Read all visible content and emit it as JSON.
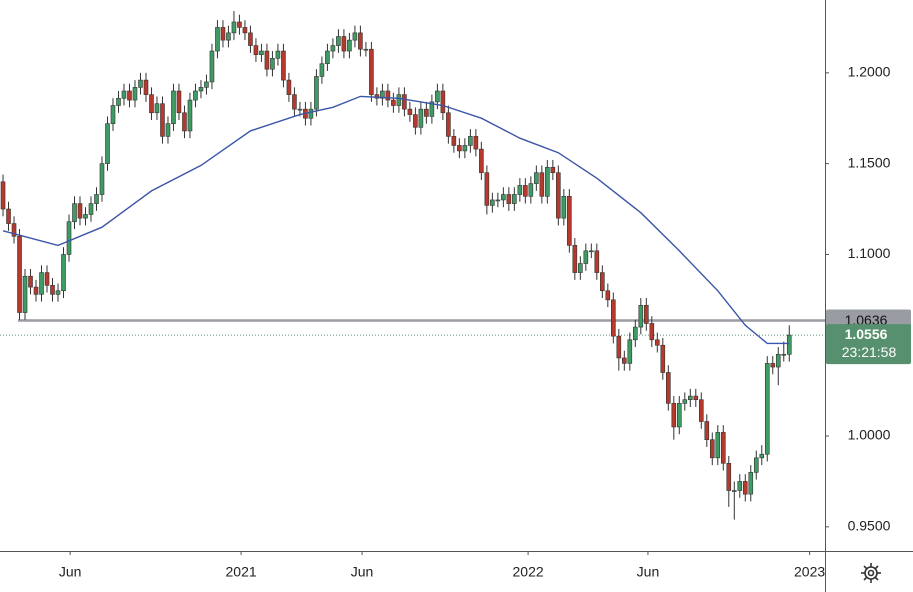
{
  "chart_data": {
    "type": "candlestick",
    "x": [
      0,
      1,
      2,
      3,
      4,
      5,
      6,
      7,
      8,
      9,
      10,
      11,
      12,
      13,
      14,
      15,
      16,
      17,
      18,
      19,
      20,
      21,
      22,
      23,
      24,
      25,
      26,
      27,
      28,
      29,
      30,
      31,
      32,
      33,
      34,
      35,
      36,
      37,
      38,
      39,
      40,
      41,
      42,
      43,
      44,
      45,
      46,
      47,
      48,
      49,
      50,
      51,
      52,
      53,
      54,
      55,
      56,
      57,
      58,
      59,
      60,
      61,
      62,
      63,
      64,
      65,
      66,
      67,
      68,
      69,
      70,
      71,
      72,
      73,
      74,
      75,
      76,
      77,
      78,
      79,
      80,
      81,
      82,
      83,
      84,
      85,
      86,
      87,
      88,
      89,
      90,
      91,
      92,
      93,
      94,
      95,
      96,
      97,
      98,
      99,
      100,
      101,
      102,
      103,
      104,
      105,
      106,
      107,
      108,
      109,
      110,
      111,
      112,
      113,
      114,
      115,
      116,
      117,
      118,
      119,
      120,
      121,
      122,
      123,
      124,
      125,
      126,
      127,
      128,
      129,
      130,
      131,
      132,
      133,
      134,
      135,
      136,
      137,
      138,
      139,
      140,
      141,
      142,
      143
    ],
    "open": [
      1.14,
      1.125,
      1.117,
      1.11,
      1.068,
      1.088,
      1.082,
      1.078,
      1.09,
      1.083,
      1.078,
      1.08,
      1.1,
      1.118,
      1.128,
      1.12,
      1.122,
      1.128,
      1.133,
      1.15,
      1.172,
      1.182,
      1.186,
      1.19,
      1.185,
      1.192,
      1.196,
      1.188,
      1.178,
      1.183,
      1.165,
      1.172,
      1.19,
      1.178,
      1.168,
      1.185,
      1.19,
      1.192,
      1.195,
      1.212,
      1.225,
      1.218,
      1.222,
      1.228,
      1.225,
      1.222,
      1.215,
      1.21,
      1.212,
      1.202,
      1.208,
      1.212,
      1.196,
      1.188,
      1.18,
      1.18,
      1.175,
      1.18,
      1.198,
      1.205,
      1.212,
      1.215,
      1.22,
      1.212,
      1.218,
      1.222,
      1.213,
      1.213,
      1.188,
      1.186,
      1.19,
      1.185,
      1.182,
      1.188,
      1.18,
      1.177,
      1.17,
      1.18,
      1.176,
      1.184,
      1.19,
      1.178,
      1.165,
      1.16,
      1.157,
      1.16,
      1.165,
      1.158,
      1.145,
      1.127,
      1.13,
      1.13,
      1.133,
      1.128,
      1.133,
      1.138,
      1.132,
      1.139,
      1.145,
      1.132,
      1.148,
      1.145,
      1.12,
      1.132,
      1.105,
      1.09,
      1.095,
      1.102,
      1.102,
      1.09,
      1.08,
      1.075,
      1.055,
      1.043,
      1.04,
      1.053,
      1.06,
      1.072,
      1.062,
      1.053,
      1.05,
      1.035,
      1.018,
      1.005,
      1.018,
      1.02,
      1.022,
      1.02,
      1.008,
      0.998,
      0.988,
      1.002,
      0.985,
      0.97,
      0.97,
      0.975,
      0.968,
      0.98,
      0.988,
      0.99,
      1.04,
      1.038,
      1.045,
      1.045
    ],
    "high": [
      1.144,
      1.129,
      1.121,
      1.114,
      1.092,
      1.092,
      1.086,
      1.094,
      1.094,
      1.087,
      1.084,
      1.104,
      1.122,
      1.132,
      1.132,
      1.126,
      1.132,
      1.137,
      1.154,
      1.176,
      1.186,
      1.19,
      1.194,
      1.194,
      1.196,
      1.2,
      1.2,
      1.192,
      1.187,
      1.187,
      1.176,
      1.194,
      1.194,
      1.182,
      1.189,
      1.194,
      1.196,
      1.199,
      1.216,
      1.229,
      1.229,
      1.226,
      1.234,
      1.232,
      1.229,
      1.226,
      1.219,
      1.216,
      1.216,
      1.212,
      1.216,
      1.216,
      1.2,
      1.192,
      1.184,
      1.184,
      1.184,
      1.202,
      1.209,
      1.216,
      1.219,
      1.224,
      1.224,
      1.222,
      1.226,
      1.226,
      1.217,
      1.217,
      1.192,
      1.194,
      1.194,
      1.189,
      1.192,
      1.192,
      1.184,
      1.181,
      1.184,
      1.184,
      1.188,
      1.194,
      1.194,
      1.182,
      1.169,
      1.164,
      1.164,
      1.169,
      1.169,
      1.162,
      1.149,
      1.134,
      1.134,
      1.137,
      1.137,
      1.137,
      1.142,
      1.142,
      1.143,
      1.149,
      1.149,
      1.152,
      1.152,
      1.149,
      1.136,
      1.136,
      1.109,
      1.099,
      1.106,
      1.106,
      1.106,
      1.094,
      1.084,
      1.079,
      1.059,
      1.047,
      1.057,
      1.064,
      1.076,
      1.076,
      1.066,
      1.057,
      1.054,
      1.039,
      1.022,
      1.022,
      1.024,
      1.026,
      1.026,
      1.024,
      1.012,
      1.002,
      1.006,
      1.006,
      0.989,
      0.975,
      0.979,
      0.979,
      0.984,
      0.992,
      0.995,
      1.044,
      1.044,
      1.049,
      1.052,
      1.061
    ],
    "low": [
      1.121,
      1.113,
      1.106,
      1.064,
      1.064,
      1.078,
      1.074,
      1.074,
      1.079,
      1.074,
      1.074,
      1.076,
      1.096,
      1.114,
      1.116,
      1.116,
      1.118,
      1.124,
      1.129,
      1.146,
      1.168,
      1.178,
      1.182,
      1.181,
      1.181,
      1.188,
      1.184,
      1.174,
      1.174,
      1.161,
      1.161,
      1.168,
      1.174,
      1.164,
      1.164,
      1.181,
      1.186,
      1.188,
      1.191,
      1.208,
      1.214,
      1.214,
      1.218,
      1.221,
      1.218,
      1.211,
      1.206,
      1.206,
      1.198,
      1.198,
      1.204,
      1.192,
      1.184,
      1.176,
      1.176,
      1.171,
      1.171,
      1.176,
      1.194,
      1.201,
      1.208,
      1.211,
      1.208,
      1.208,
      1.214,
      1.209,
      1.209,
      1.184,
      1.182,
      1.182,
      1.181,
      1.178,
      1.178,
      1.176,
      1.173,
      1.166,
      1.166,
      1.172,
      1.172,
      1.18,
      1.174,
      1.161,
      1.156,
      1.153,
      1.153,
      1.156,
      1.154,
      1.141,
      1.122,
      1.123,
      1.126,
      1.126,
      1.124,
      1.124,
      1.129,
      1.128,
      1.128,
      1.135,
      1.128,
      1.128,
      1.141,
      1.116,
      1.116,
      1.101,
      1.086,
      1.086,
      1.091,
      1.098,
      1.086,
      1.076,
      1.071,
      1.051,
      1.036,
      1.036,
      1.036,
      1.049,
      1.056,
      1.058,
      1.049,
      1.046,
      1.031,
      1.014,
      0.998,
      1.001,
      1.014,
      1.016,
      1.016,
      1.004,
      0.994,
      0.984,
      0.984,
      0.981,
      0.961,
      0.954,
      0.966,
      0.964,
      0.964,
      0.976,
      0.984,
      0.986,
      1.034,
      1.028,
      1.041,
      1.041
    ],
    "close": [
      1.125,
      1.117,
      1.11,
      1.068,
      1.088,
      1.082,
      1.078,
      1.09,
      1.083,
      1.078,
      1.08,
      1.1,
      1.118,
      1.128,
      1.12,
      1.122,
      1.128,
      1.133,
      1.15,
      1.172,
      1.182,
      1.186,
      1.19,
      1.185,
      1.192,
      1.196,
      1.188,
      1.178,
      1.183,
      1.165,
      1.172,
      1.19,
      1.178,
      1.168,
      1.185,
      1.19,
      1.192,
      1.195,
      1.212,
      1.225,
      1.218,
      1.222,
      1.228,
      1.225,
      1.222,
      1.215,
      1.21,
      1.212,
      1.202,
      1.208,
      1.212,
      1.196,
      1.188,
      1.18,
      1.18,
      1.175,
      1.18,
      1.198,
      1.205,
      1.212,
      1.215,
      1.22,
      1.212,
      1.218,
      1.222,
      1.213,
      1.213,
      1.188,
      1.186,
      1.19,
      1.185,
      1.182,
      1.188,
      1.18,
      1.177,
      1.17,
      1.18,
      1.176,
      1.184,
      1.19,
      1.178,
      1.165,
      1.16,
      1.157,
      1.16,
      1.165,
      1.158,
      1.145,
      1.127,
      1.13,
      1.13,
      1.133,
      1.128,
      1.133,
      1.138,
      1.132,
      1.139,
      1.145,
      1.132,
      1.148,
      1.145,
      1.12,
      1.132,
      1.105,
      1.09,
      1.095,
      1.102,
      1.102,
      1.09,
      1.08,
      1.075,
      1.055,
      1.043,
      1.04,
      1.053,
      1.06,
      1.072,
      1.062,
      1.053,
      1.05,
      1.035,
      1.018,
      1.005,
      1.018,
      1.02,
      1.022,
      1.02,
      1.008,
      0.998,
      0.988,
      1.002,
      0.985,
      0.97,
      0.97,
      0.975,
      0.968,
      0.98,
      0.988,
      0.99,
      1.04,
      1.038,
      1.045,
      1.045,
      1.0556
    ],
    "up_color": "#3f9a63",
    "down_color": "#b53a2d",
    "ma": {
      "color": "#3a56a8",
      "x": [
        0,
        10,
        18,
        27,
        36,
        45,
        54,
        60,
        65,
        72,
        80,
        87,
        94,
        101,
        108,
        116,
        123,
        130,
        135,
        139,
        143
      ],
      "values": [
        1.113,
        1.105,
        1.115,
        1.135,
        1.149,
        1.168,
        1.177,
        1.181,
        1.187,
        1.186,
        1.182,
        1.175,
        1.164,
        1.156,
        1.142,
        1.123,
        1.102,
        1.08,
        1.061,
        1.051,
        1.051
      ]
    },
    "hline": {
      "value": 1.0636,
      "color": "#9a9ca3"
    },
    "last": {
      "value": 1.0556,
      "countdown": "23:21:58",
      "color": "#57906e"
    },
    "ylim": [
      0.9367,
      1.2401
    ],
    "yticks": [
      {
        "value": 0.95,
        "label": "0.9500"
      },
      {
        "value": 1.0,
        "label": "1.0000"
      },
      {
        "value": 1.1,
        "label": "1.1000"
      },
      {
        "value": 1.15,
        "label": "1.1500"
      },
      {
        "value": 1.2,
        "label": "1.2000"
      }
    ],
    "xlim": [
      -0.55,
      149.5
    ],
    "xticks": [
      {
        "value": 12.2,
        "label": "Jun"
      },
      {
        "value": 43.3,
        "label": "2021"
      },
      {
        "value": 65.3,
        "label": "Jun"
      },
      {
        "value": 95.5,
        "label": "2022"
      },
      {
        "value": 117.3,
        "label": "Jun"
      },
      {
        "value": 146.7,
        "label": "2023"
      }
    ]
  }
}
